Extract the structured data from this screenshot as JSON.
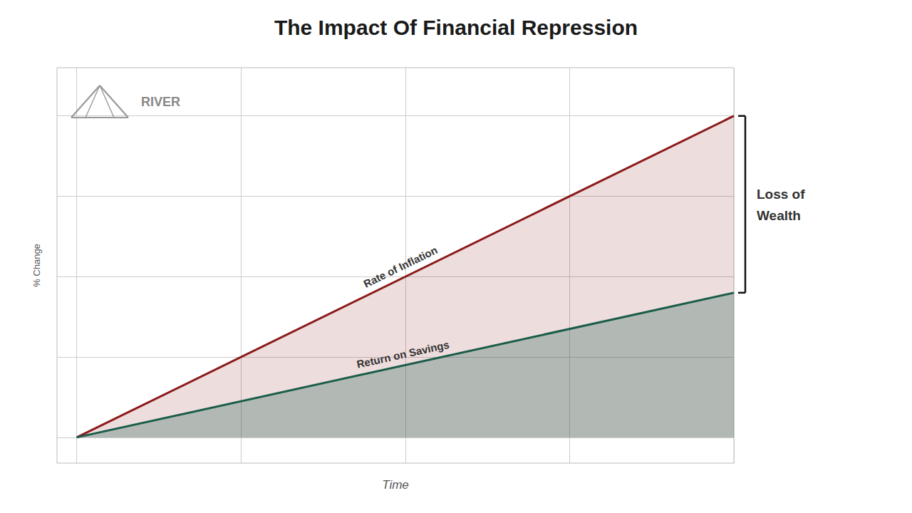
{
  "chart_data": {
    "type": "line",
    "title": "The Impact Of Financial Repression",
    "xlabel": "Time",
    "ylabel": "% Change",
    "x": [
      0,
      10
    ],
    "series": [
      {
        "name": "Rate of Inflation",
        "color": "#8B1A1A",
        "values": [
          0,
          10
        ]
      },
      {
        "name": "Return on Savings",
        "color": "#1A5C4A",
        "values": [
          0,
          4.5
        ]
      }
    ],
    "xlim": [
      -0.3,
      10
    ],
    "ylim": [
      -0.8,
      11.5
    ],
    "xticks": [
      0,
      2.5,
      5,
      7.5,
      10
    ],
    "yticks": [
      0,
      2.5,
      5,
      7.5,
      10
    ],
    "grid": true,
    "tick_labels": false,
    "annotations": [
      "Loss of",
      "Wealth",
      "RIVER"
    ]
  }
}
